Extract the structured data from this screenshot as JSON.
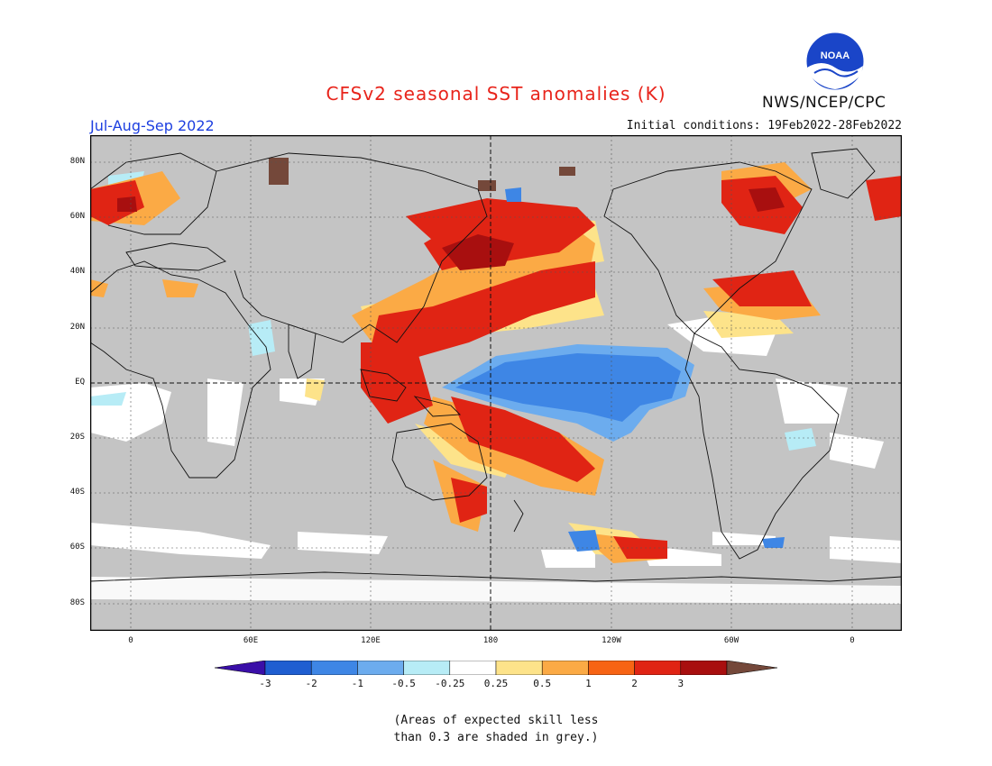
{
  "title": "CFSv2 seasonal SST anomalies (K)",
  "organization": "NWS/NCEP/CPC",
  "logo_text": "NOAA",
  "season": "Jul-Aug-Sep 2022",
  "initial_conditions": "Initial conditions: 19Feb2022-28Feb2022",
  "lat_labels": [
    "80N",
    "60N",
    "40N",
    "20N",
    "EQ",
    "20S",
    "40S",
    "60S",
    "80S"
  ],
  "lon_labels": [
    "0",
    "60E",
    "120E",
    "180",
    "120W",
    "60W",
    "0"
  ],
  "colorbar": {
    "ticks": [
      "-3",
      "-2",
      "-1",
      "-0.5",
      "-0.25",
      "0.25",
      "0.5",
      "1",
      "2",
      "3"
    ],
    "colors": [
      "#3a0fa8",
      "#1f5ed1",
      "#3e86e5",
      "#6cacee",
      "#b7ecf6",
      "#ffffff",
      "#fde38a",
      "#fbaa45",
      "#f76414",
      "#e02414",
      "#a80f0f",
      "#74483a"
    ]
  },
  "colors": {
    "land": "#c4c4c4",
    "neutral": "#ffffff"
  },
  "note_line1": "(Areas of expected skill less",
  "note_line2": "than 0.3 are shaded in grey.)"
}
